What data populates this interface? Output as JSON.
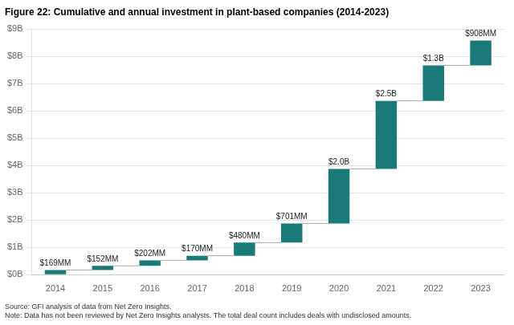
{
  "chart_data": {
    "type": "waterfall",
    "title": "Figure 22: Cumulative and annual investment in plant-based companies (2014-2023)",
    "categories": [
      "2014",
      "2015",
      "2016",
      "2017",
      "2018",
      "2019",
      "2020",
      "2021",
      "2022",
      "2023"
    ],
    "values": [
      0.169,
      0.152,
      0.202,
      0.17,
      0.48,
      0.701,
      2.0,
      2.5,
      1.3,
      0.908
    ],
    "value_labels": [
      "$169MM",
      "$152MM",
      "$202MM",
      "$170MM",
      "$480MM",
      "$701MM",
      "$2.0B",
      "$2.5B",
      "$1.3B",
      "$908MM"
    ],
    "data_labels": true,
    "color": "#1a7a78",
    "ylim": [
      0,
      9
    ],
    "yticks": [
      {
        "value": 0,
        "label": "$0B"
      },
      {
        "value": 1,
        "label": "$1B"
      },
      {
        "value": 2,
        "label": "$2B"
      },
      {
        "value": 3,
        "label": "$3B"
      },
      {
        "value": 4,
        "label": "$4B"
      },
      {
        "value": 5,
        "label": "$5B"
      },
      {
        "value": 6,
        "label": "$6B"
      },
      {
        "value": 7,
        "label": "$7B"
      },
      {
        "value": 8,
        "label": "$8B"
      },
      {
        "value": 9,
        "label": "$9B"
      }
    ],
    "grid": true,
    "annotations": [
      "Source: GFI analysis of data from Net Zero Insights.",
      "Note: Data has not been reviewed by Net Zero Insights analysts. The total deal count includes deals with undisclosed amounts."
    ]
  }
}
